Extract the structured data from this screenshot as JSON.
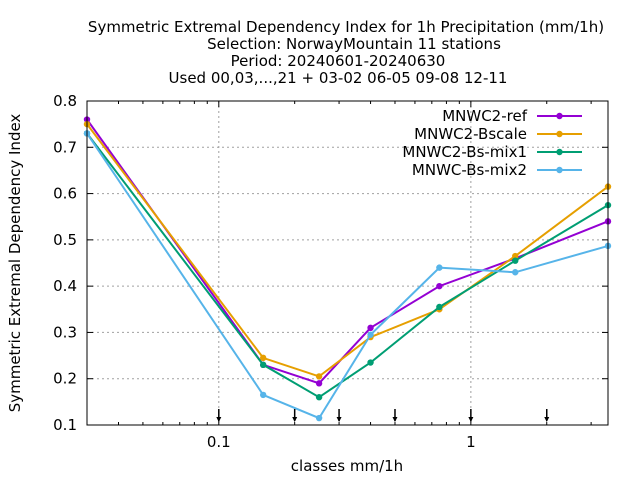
{
  "chart_data": {
    "type": "line",
    "title_lines": [
      "Symmetric Extremal Dependency Index  for 1h Precipitation (mm/1h)",
      "Selection: NorwayMountain     11 stations",
      "Period: 20240601-20240630",
      "Used 00,03,...,21 + 03-02 06-05 09-08 12-11"
    ],
    "xlabel": "classes mm/1h",
    "ylabel": "Symmetric Extremal Dependency Index",
    "x_scale": "log",
    "xlim": [
      0.03,
      3.5
    ],
    "ylim": [
      0.1,
      0.8
    ],
    "x_ticks": [
      0.1,
      1
    ],
    "x_tick_labels": [
      "0.1",
      "1"
    ],
    "y_ticks": [
      0.1,
      0.2,
      0.3,
      0.4,
      0.5,
      0.6,
      0.7,
      0.8
    ],
    "y_tick_labels": [
      "0.1",
      "0.2",
      "0.3",
      "0.4",
      "0.5",
      "0.6",
      "0.7",
      "0.8"
    ],
    "class_markers": [
      0.1,
      0.2,
      0.3,
      0.5,
      1,
      2
    ],
    "grid": true,
    "legend_position": "top-right",
    "series": [
      {
        "name": "MNWC2-ref",
        "color": "#9400d3",
        "x": [
          0.03,
          0.15,
          0.25,
          0.4,
          0.75,
          1.5,
          3.5
        ],
        "y": [
          0.76,
          0.23,
          0.19,
          0.31,
          0.4,
          0.46,
          0.54
        ]
      },
      {
        "name": "MNWC2-Bscale",
        "color": "#e69f00",
        "x": [
          0.03,
          0.15,
          0.25,
          0.4,
          0.75,
          1.5,
          3.5
        ],
        "y": [
          0.75,
          0.245,
          0.205,
          0.29,
          0.35,
          0.465,
          0.615
        ]
      },
      {
        "name": "MNWC2-Bs-mix1",
        "color": "#009e73",
        "x": [
          0.03,
          0.15,
          0.25,
          0.4,
          0.75,
          1.5,
          3.5
        ],
        "y": [
          0.73,
          0.23,
          0.16,
          0.235,
          0.355,
          0.455,
          0.575
        ]
      },
      {
        "name": "MNWC-Bs-mix2",
        "color": "#56b4e9",
        "x": [
          0.03,
          0.15,
          0.25,
          0.4,
          0.75,
          1.5,
          3.5
        ],
        "y": [
          0.73,
          0.165,
          0.115,
          0.295,
          0.44,
          0.43,
          0.487
        ]
      }
    ]
  }
}
